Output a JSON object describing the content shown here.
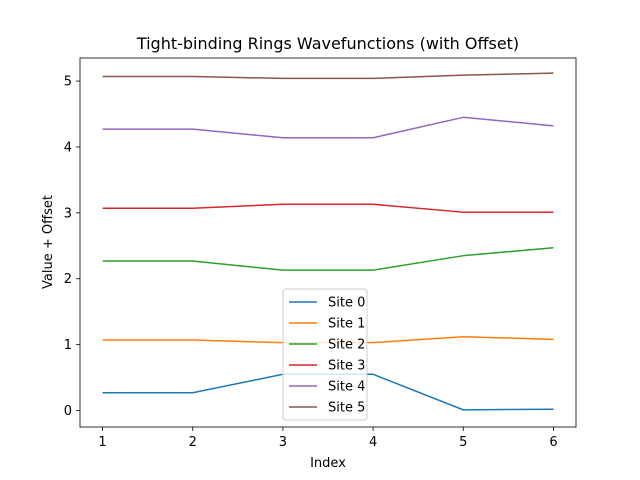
{
  "chart_data": {
    "type": "line",
    "title": "Tight-binding Rings Wavefunctions (with Offset)",
    "xlabel": "Index",
    "ylabel": "Value + Offset",
    "x": [
      1,
      2,
      3,
      4,
      5,
      6
    ],
    "xticks": [
      "1",
      "2",
      "3",
      "4",
      "5",
      "6"
    ],
    "yticks": [
      "0",
      "1",
      "2",
      "3",
      "4",
      "5"
    ],
    "xlim": [
      0.75,
      6.25
    ],
    "ylim": [
      -0.25,
      5.35
    ],
    "grid": false,
    "legend_position": "lower-center",
    "series": [
      {
        "name": "Site 0",
        "color": "#1f77b4",
        "values": [
          0.27,
          0.27,
          0.55,
          0.55,
          0.01,
          0.02
        ]
      },
      {
        "name": "Site 1",
        "color": "#ff7f0e",
        "values": [
          1.07,
          1.07,
          1.03,
          1.03,
          1.12,
          1.08
        ]
      },
      {
        "name": "Site 2",
        "color": "#2ca02c",
        "values": [
          2.27,
          2.27,
          2.13,
          2.13,
          2.35,
          2.47
        ]
      },
      {
        "name": "Site 3",
        "color": "#d62728",
        "values": [
          3.07,
          3.07,
          3.13,
          3.13,
          3.01,
          3.01
        ]
      },
      {
        "name": "Site 4",
        "color": "#9467bd",
        "values": [
          4.27,
          4.27,
          4.14,
          4.14,
          4.45,
          4.32
        ]
      },
      {
        "name": "Site 5",
        "color": "#8c564b",
        "values": [
          5.07,
          5.07,
          5.04,
          5.04,
          5.09,
          5.12
        ]
      }
    ]
  }
}
